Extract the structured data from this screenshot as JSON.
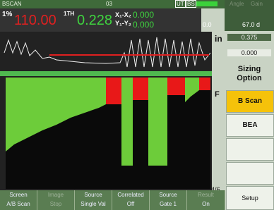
{
  "header": {
    "mode": "BSCAN",
    "file": "03",
    "tags": [
      "UT",
      "BS"
    ],
    "right_labels": [
      "Angle",
      "Gain"
    ],
    "angle": "0.0",
    "gain": "67.0 d"
  },
  "readings": [
    {
      "label": "1%",
      "value": "110.00"
    },
    {
      "label": "1TH",
      "value": "0.228"
    },
    {
      "label": "X₁-X₂",
      "value": "0.000"
    },
    {
      "label": "Y₁-Y₂",
      "value": "0.000"
    }
  ],
  "side": {
    "unit": "in",
    "values": [
      "0.375",
      "0.000"
    ],
    "menu_title": "Sizing Option",
    "buttons": [
      "B Scan",
      "BEA"
    ],
    "bottom": "Setup"
  },
  "scan": {
    "marker": "F",
    "page": "4/6"
  },
  "softkeys": [
    {
      "top": "Screen",
      "bottom": "A/B Scan"
    },
    {
      "top": "Image",
      "bottom": "Stop"
    },
    {
      "top": "Source",
      "bottom": "Single Val"
    },
    {
      "top": "Correlated",
      "bottom": "Off"
    },
    {
      "top": "Source",
      "bottom": "Gate 1"
    },
    {
      "top": "Result",
      "bottom": "On"
    }
  ]
}
